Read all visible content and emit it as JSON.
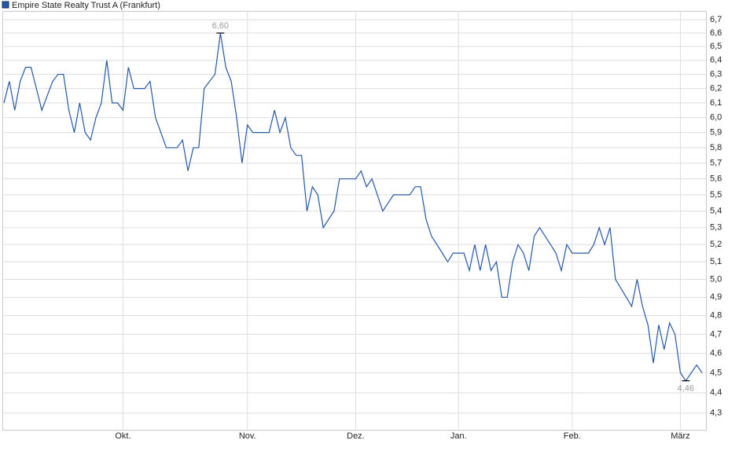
{
  "chart_data": {
    "type": "line",
    "series": [
      {
        "name": "Empire State Realty Trust A (Frankfurt)",
        "color": "#2458a8",
        "values": [
          6.1,
          6.25,
          6.05,
          6.25,
          6.35,
          6.35,
          6.2,
          6.05,
          6.15,
          6.25,
          6.3,
          6.3,
          6.05,
          5.9,
          6.1,
          5.9,
          5.85,
          6.0,
          6.1,
          6.4,
          6.1,
          6.1,
          6.05,
          6.35,
          6.2,
          6.2,
          6.2,
          6.25,
          6.0,
          5.9,
          5.8,
          5.8,
          5.8,
          5.85,
          5.65,
          5.8,
          5.8,
          6.2,
          6.25,
          6.3,
          6.6,
          6.35,
          6.25,
          6.0,
          5.7,
          5.95,
          5.9,
          5.9,
          5.9,
          5.9,
          6.05,
          5.9,
          6.0,
          5.8,
          5.75,
          5.75,
          5.4,
          5.55,
          5.5,
          5.3,
          5.35,
          5.4,
          5.6,
          5.6,
          5.6,
          5.6,
          5.65,
          5.55,
          5.6,
          5.5,
          5.4,
          5.45,
          5.5,
          5.5,
          5.5,
          5.5,
          5.55,
          5.55,
          5.35,
          5.25,
          5.2,
          5.15,
          5.1,
          5.15,
          5.15,
          5.15,
          5.05,
          5.2,
          5.05,
          5.2,
          5.05,
          5.1,
          4.9,
          4.9,
          5.1,
          5.2,
          5.15,
          5.05,
          5.25,
          5.3,
          5.25,
          5.2,
          5.15,
          5.05,
          5.2,
          5.15,
          5.15,
          5.15,
          5.15,
          5.2,
          5.3,
          5.2,
          5.3,
          5.0,
          4.95,
          4.9,
          4.85,
          5.0,
          4.85,
          4.75,
          4.55,
          4.75,
          4.62,
          4.76,
          4.7,
          4.5,
          4.46,
          4.5,
          4.54,
          4.5
        ],
        "value_labels": [
          null,
          null,
          null,
          null,
          null,
          null,
          null,
          null,
          null,
          null,
          null,
          null,
          null,
          null,
          null,
          null,
          null,
          null,
          null,
          null,
          null,
          null,
          null,
          null,
          null,
          null,
          null,
          null,
          null,
          null,
          null,
          null,
          null,
          null,
          null,
          null,
          null,
          null,
          null,
          null,
          "6,60",
          null,
          null,
          null,
          null,
          null,
          null,
          null,
          null,
          null,
          null,
          null,
          null,
          null,
          null,
          null,
          null,
          null,
          null,
          null,
          null,
          null,
          null,
          null,
          null,
          null,
          null,
          null,
          null,
          null,
          null,
          null,
          null,
          null,
          null,
          null,
          null,
          null,
          null,
          null,
          null,
          null,
          null,
          null,
          null,
          null,
          null,
          null,
          null,
          null,
          null,
          null,
          null,
          null,
          null,
          null,
          null,
          null,
          null,
          null,
          null,
          null,
          null,
          null,
          null,
          null,
          null,
          null,
          null,
          null,
          null,
          null,
          null,
          null,
          null,
          null,
          null,
          null,
          null,
          null,
          null,
          null,
          null,
          null,
          null,
          null,
          "4,46",
          null,
          null,
          null
        ]
      }
    ],
    "categories": [
      null,
      null,
      null,
      null,
      null,
      null,
      null,
      null,
      null,
      null,
      null,
      null,
      null,
      null,
      null,
      null,
      null,
      null,
      null,
      null,
      null,
      null,
      "Okt.",
      null,
      null,
      null,
      null,
      null,
      null,
      null,
      null,
      null,
      null,
      null,
      null,
      null,
      null,
      null,
      null,
      null,
      null,
      null,
      null,
      null,
      null,
      "Nov.",
      null,
      null,
      null,
      null,
      null,
      null,
      null,
      null,
      null,
      null,
      null,
      null,
      null,
      null,
      null,
      null,
      null,
      null,
      null,
      "Dez.",
      null,
      null,
      null,
      null,
      null,
      null,
      null,
      null,
      null,
      null,
      null,
      null,
      null,
      null,
      null,
      null,
      null,
      null,
      "Jan.",
      null,
      null,
      null,
      null,
      null,
      null,
      null,
      null,
      null,
      null,
      null,
      null,
      null,
      null,
      null,
      null,
      null,
      null,
      null,
      null,
      "Feb.",
      null,
      null,
      null,
      null,
      null,
      null,
      null,
      null,
      null,
      null,
      null,
      null,
      null,
      null,
      null,
      null,
      null,
      null,
      null,
      "März",
      null,
      null,
      null,
      null
    ],
    "ylim": [
      4.22,
      6.76
    ],
    "log_scale": true,
    "grid": true,
    "yticks": [
      {
        "value": 4.3,
        "label": "4,3"
      },
      {
        "value": 4.4,
        "label": "4,4"
      },
      {
        "value": 4.5,
        "label": "4,5"
      },
      {
        "value": 4.6,
        "label": "4,6"
      },
      {
        "value": 4.7,
        "label": "4,7"
      },
      {
        "value": 4.8,
        "label": "4,8"
      },
      {
        "value": 4.9,
        "label": "4,9"
      },
      {
        "value": 5.0,
        "label": "5,0"
      },
      {
        "value": 5.1,
        "label": "5,1"
      },
      {
        "value": 5.2,
        "label": "5,2"
      },
      {
        "value": 5.3,
        "label": "5,3"
      },
      {
        "value": 5.4,
        "label": "5,4"
      },
      {
        "value": 5.5,
        "label": "5,5"
      },
      {
        "value": 5.6,
        "label": "5,6"
      },
      {
        "value": 5.7,
        "label": "5,7"
      },
      {
        "value": 5.8,
        "label": "5,8"
      },
      {
        "value": 5.9,
        "label": "5,9"
      },
      {
        "value": 6.0,
        "label": "6,0"
      },
      {
        "value": 6.1,
        "label": "6,1"
      },
      {
        "value": 6.2,
        "label": "6,2"
      },
      {
        "value": 6.3,
        "label": "6,3"
      },
      {
        "value": 6.4,
        "label": "6,4"
      },
      {
        "value": 6.5,
        "label": "6,5"
      },
      {
        "value": 6.6,
        "label": "6,6"
      },
      {
        "value": 6.7,
        "label": "6,7"
      }
    ]
  }
}
